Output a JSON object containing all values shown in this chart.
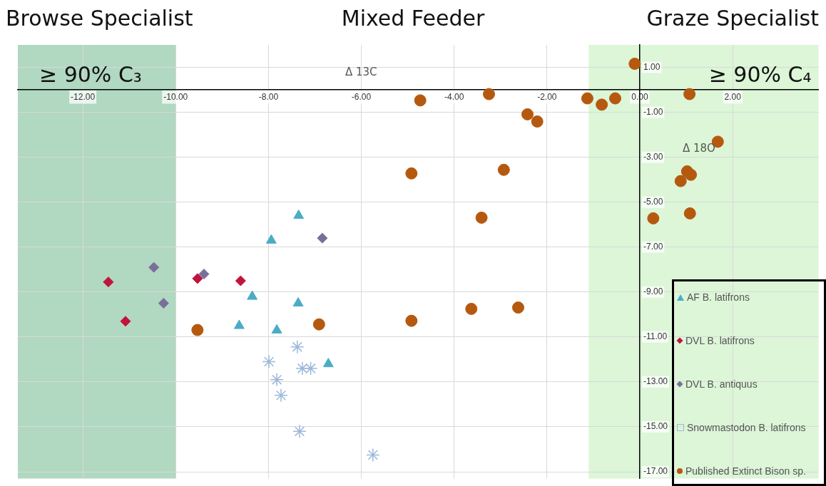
{
  "chart_data": {
    "type": "scatter",
    "xlabel": "Δ 13C",
    "ylabel": "Δ 18O",
    "annotations": [
      "Browse Specialist",
      "Mixed Feeder",
      "Graze Specialist"
    ],
    "xlim": [
      -13.4,
      3.85
    ],
    "ylim": [
      -17.3,
      2
    ],
    "xticks": [
      {
        "value": -12,
        "label": "-12.00"
      },
      {
        "value": -10,
        "label": "-10.00"
      },
      {
        "value": -8,
        "label": "-8.00"
      },
      {
        "value": -6,
        "label": "-6.00"
      },
      {
        "value": -4,
        "label": "-4.00"
      },
      {
        "value": -2,
        "label": "-2.00"
      },
      {
        "value": 0,
        "label": "0.00"
      },
      {
        "value": 2,
        "label": "2.00"
      }
    ],
    "yticks": [
      {
        "value": 1,
        "label": "1.00"
      },
      {
        "value": -1,
        "label": "-1.00"
      },
      {
        "value": -3,
        "label": "-3.00"
      },
      {
        "value": -5,
        "label": "-5.00"
      },
      {
        "value": -7,
        "label": "-7.00"
      },
      {
        "value": -9,
        "label": "-9.00"
      },
      {
        "value": -11,
        "label": "-11.00"
      },
      {
        "value": -13,
        "label": "-13.00"
      },
      {
        "value": -15,
        "label": "-15.00"
      },
      {
        "value": -17,
        "label": "-17.00"
      }
    ],
    "grid": true,
    "legend": "bottom right",
    "bands": [
      {
        "axis": "x",
        "from": -13.4,
        "to": -10,
        "label": "≥ 90% C₃",
        "color": "#a3d1b5"
      },
      {
        "axis": "x",
        "from": -1.1,
        "to": 3.85,
        "label": "≥ 90% C₄",
        "color": "#d6f5d0"
      }
    ],
    "series": [
      {
        "name": "AF B. latifrons",
        "color": "#4bacc6",
        "marker": "triangle",
        "x": [
          -7.35,
          -7.94,
          -8.35,
          -7.36,
          -8.63,
          -7.82,
          -6.71
        ],
        "values": [
          -5.6,
          -6.7,
          -9.2,
          -9.5,
          -10.5,
          -10.7,
          -12.2
        ]
      },
      {
        "name": "DVL B. latifrons",
        "color": "#c0143c",
        "marker": "diamond",
        "x": [
          -9.53,
          -8.6,
          -11.45,
          -11.08
        ],
        "values": [
          -8.4,
          -8.5,
          -8.55,
          -10.3
        ]
      },
      {
        "name": "DVL B. antiquus",
        "color": "#7a6f9b",
        "marker": "diamond",
        "x": [
          -9.39,
          -10.47,
          -10.26,
          -6.84
        ],
        "values": [
          -8.2,
          -7.9,
          -9.5,
          -6.6
        ]
      },
      {
        "name": "Snowmastodon B. latifrons",
        "color": "#9db8d9",
        "marker": "cross",
        "x": [
          -7.38,
          -7.99,
          -7.27,
          -7.09,
          -7.82,
          -7.73,
          -7.33,
          -5.75
        ],
        "values": [
          -11.44,
          -12.1,
          -12.4,
          -12.4,
          -12.9,
          -13.6,
          -15.2,
          -16.25
        ]
      },
      {
        "name": "Published Extinct Bison sp.",
        "color": "#b5590f",
        "marker": "circle",
        "x": [
          -4.73,
          -3.25,
          -2.42,
          -2.21,
          -1.13,
          -4.92,
          -2.93,
          -3.41,
          -3.63,
          -2.62,
          -4.92,
          -6.91,
          -9.53,
          -0.11,
          -0.82,
          -0.53,
          1.07,
          1.68,
          1.02,
          1.1,
          0.88,
          0.29,
          1.08
        ],
        "values": [
          -0.47,
          -0.19,
          -1.09,
          -1.41,
          -0.38,
          -3.72,
          -3.56,
          -5.69,
          -9.75,
          -9.69,
          -10.28,
          -10.44,
          -10.69,
          1.16,
          -0.66,
          -0.38,
          -0.19,
          -2.31,
          -3.63,
          -3.78,
          -4.06,
          -5.72,
          -5.5
        ]
      }
    ]
  }
}
